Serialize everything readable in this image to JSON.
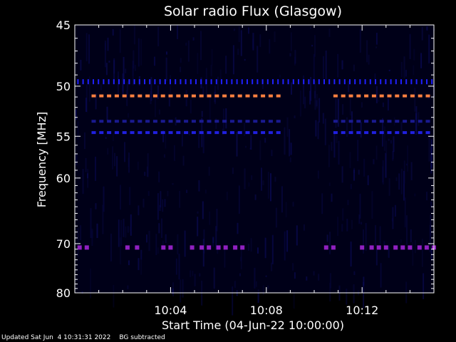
{
  "chart_data": {
    "type": "heatmap",
    "title": "Solar radio Flux (Glasgow)",
    "xlabel": "Start Time (04-Jun-22 10:00:00)",
    "ylabel": "Frequency [MHz]",
    "x_unit": "minutes after 10:00:00",
    "xlim": [
      0,
      15
    ],
    "ylim": [
      45,
      80
    ],
    "y_scale": "reciprocal",
    "x_ticks": [
      {
        "value": 4,
        "label": "10:04"
      },
      {
        "value": 8,
        "label": "10:08"
      },
      {
        "value": 12,
        "label": "10:12"
      }
    ],
    "y_ticks": [
      {
        "value": 45,
        "label": "45"
      },
      {
        "value": 50,
        "label": "50"
      },
      {
        "value": 55,
        "label": "55"
      },
      {
        "value": 60,
        "label": "60"
      },
      {
        "value": 70,
        "label": "70"
      },
      {
        "value": 80,
        "label": "80"
      }
    ],
    "bands": [
      {
        "frequency": 49.6,
        "color": "#2020ff",
        "segments": [
          [
            0.1,
            15.0
          ]
        ],
        "dash": "short"
      },
      {
        "frequency": 50.9,
        "color": "#ff8040",
        "segments": [
          [
            0.7,
            8.7
          ],
          [
            10.8,
            15.0
          ]
        ],
        "dash": "long"
      },
      {
        "frequency": 53.4,
        "color": "#1a1a90",
        "segments": [
          [
            0.7,
            8.7
          ],
          [
            10.8,
            15.0
          ]
        ],
        "dash": "long"
      },
      {
        "frequency": 54.6,
        "color": "#2020e0",
        "segments": [
          [
            0.7,
            8.7
          ],
          [
            10.8,
            15.0
          ]
        ],
        "dash": "long"
      },
      {
        "frequency": 70.7,
        "color": "#9020c0",
        "points": [
          0.2,
          0.5,
          2.2,
          2.6,
          3.7,
          4.0,
          4.9,
          5.3,
          5.6,
          6.0,
          6.3,
          6.7,
          7.0,
          10.5,
          10.8,
          12.0,
          12.4,
          12.7,
          13.0,
          13.4,
          13.7,
          14.0,
          14.4,
          14.7,
          15.0
        ]
      }
    ],
    "background_color": "#000018",
    "grid": false
  },
  "footer": {
    "updated": "Updated Sat Jun  4 10:31:31 2022",
    "note": "BG subtracted"
  }
}
